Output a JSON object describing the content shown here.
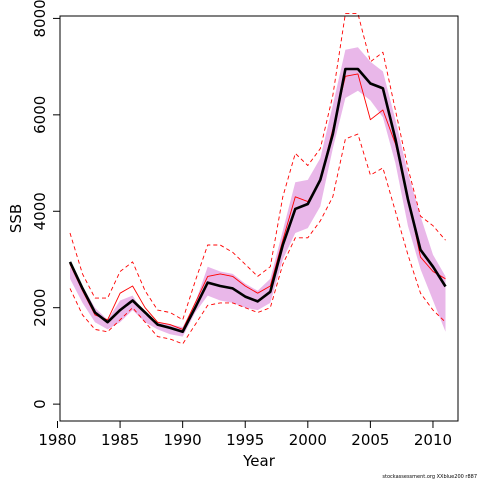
{
  "chart_data": {
    "type": "line",
    "title": "",
    "xlabel": "Year",
    "ylabel": "SSB",
    "xlim": [
      1980.2,
      2012.0
    ],
    "ylim": [
      -350,
      8050
    ],
    "xticks": [
      1980,
      1985,
      1990,
      1995,
      2000,
      2005,
      2010
    ],
    "yticks": [
      0,
      2000,
      4000,
      6000,
      8000
    ],
    "grid": false,
    "legend": "none",
    "x": [
      1981,
      1982,
      1983,
      1984,
      1985,
      1986,
      1987,
      1988,
      1989,
      1990,
      1991,
      1992,
      1993,
      1994,
      1995,
      1996,
      1997,
      1998,
      1999,
      2000,
      2001,
      2002,
      2003,
      2004,
      2005,
      2006,
      2007,
      2008,
      2009,
      2010,
      2011
    ],
    "series": [
      {
        "role": "band",
        "color": "#e9b7e9",
        "upper": [
          2850,
          2450,
          2000,
          1750,
          2150,
          2250,
          1850,
          1700,
          1650,
          1600,
          2100,
          2850,
          2750,
          2700,
          2500,
          2350,
          2600,
          3600,
          4600,
          4650,
          5100,
          6200,
          7350,
          7400,
          7100,
          6900,
          5900,
          4800,
          3900,
          3100,
          2650
        ],
        "lower": [
          2600,
          2100,
          1700,
          1550,
          1700,
          1950,
          1700,
          1550,
          1450,
          1400,
          1900,
          2250,
          2150,
          2100,
          2000,
          1950,
          2100,
          3000,
          3550,
          3650,
          4100,
          5300,
          6350,
          6500,
          6300,
          5950,
          5000,
          3700,
          2800,
          2150,
          1500
        ]
      },
      {
        "role": "central",
        "color": "#000000",
        "values": [
          2950,
          2400,
          1900,
          1700,
          1950,
          2150,
          1900,
          1650,
          1580,
          1500,
          2000,
          2520,
          2450,
          2400,
          2230,
          2130,
          2330,
          3300,
          4050,
          4150,
          4650,
          5600,
          6950,
          6950,
          6650,
          6550,
          5500,
          4250,
          3200,
          2850,
          2440
        ]
      },
      {
        "role": "estimate",
        "color": "#ff0000",
        "values": [
          2900,
          2350,
          1850,
          1750,
          2300,
          2450,
          2000,
          1700,
          1650,
          1550,
          2100,
          2650,
          2700,
          2650,
          2450,
          2300,
          2450,
          3400,
          4300,
          4200,
          4650,
          5700,
          6800,
          6850,
          5900,
          6100,
          5400,
          4300,
          3050,
          2750,
          2600
        ]
      },
      {
        "role": "estimate-upper",
        "color": "#ff0000",
        "values": [
          3550,
          2700,
          2200,
          2200,
          2750,
          2950,
          2350,
          1950,
          1900,
          1750,
          2550,
          3300,
          3300,
          3150,
          2900,
          2650,
          2850,
          4300,
          5200,
          4950,
          5300,
          6400,
          8100,
          8100,
          7100,
          7300,
          6100,
          4900,
          3900,
          3700,
          3400
        ]
      },
      {
        "role": "estimate-lower",
        "color": "#ff0000",
        "values": [
          2400,
          1850,
          1550,
          1500,
          1750,
          2000,
          1700,
          1400,
          1350,
          1250,
          1650,
          2050,
          2100,
          2100,
          2000,
          1900,
          2000,
          2900,
          3450,
          3450,
          3800,
          4300,
          5500,
          5600,
          4750,
          4900,
          4000,
          3100,
          2300,
          1950,
          1700
        ]
      }
    ]
  },
  "footer": "stockassessment.org XXblue200 r887"
}
